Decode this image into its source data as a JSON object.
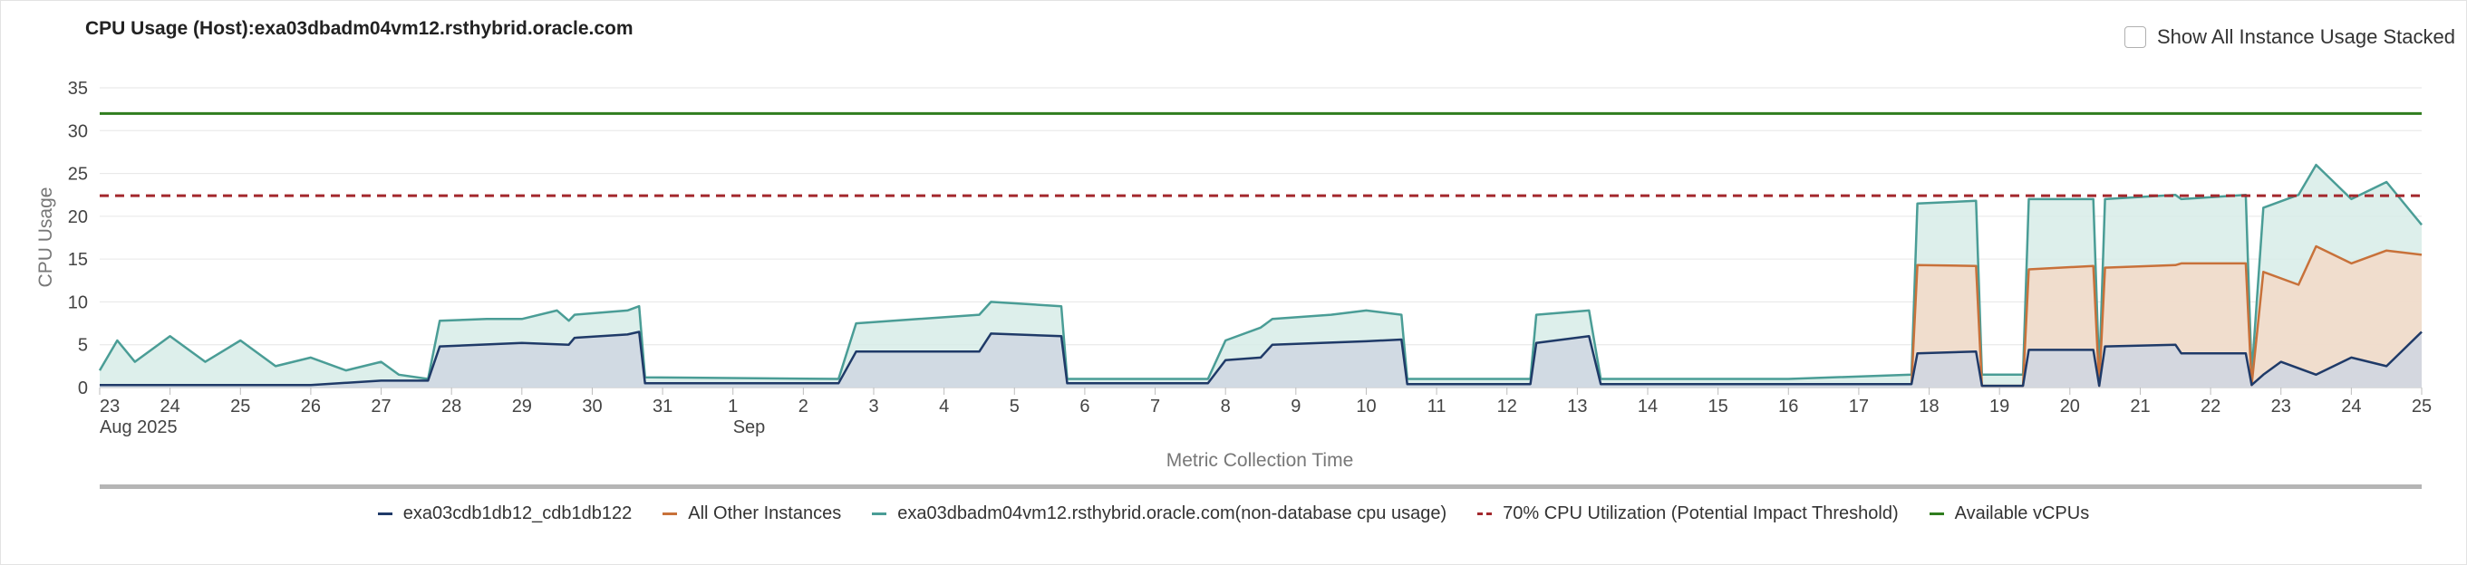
{
  "header": {
    "title": "CPU Usage (Host):exa03dbadm04vm12.rsthybrid.oracle.com",
    "stack_toggle_label": "Show All Instance Usage Stacked",
    "stack_toggle_checked": false
  },
  "chart_data": {
    "type": "area",
    "xlabel": "Metric Collection Time",
    "ylabel": "CPU Usage",
    "ylim": [
      0,
      35
    ],
    "yticks": [
      0,
      5,
      10,
      15,
      20,
      25,
      30,
      35
    ],
    "grid": true,
    "legend_position": "bottom",
    "x_range": [
      "2025-08-23",
      "2025-09-25"
    ],
    "x_ticks": [
      {
        "date": "2025-08-23",
        "label": "23",
        "sublabel": "Aug 2025"
      },
      {
        "date": "2025-08-24",
        "label": "24"
      },
      {
        "date": "2025-08-25",
        "label": "25"
      },
      {
        "date": "2025-08-26",
        "label": "26"
      },
      {
        "date": "2025-08-27",
        "label": "27"
      },
      {
        "date": "2025-08-28",
        "label": "28"
      },
      {
        "date": "2025-08-29",
        "label": "29"
      },
      {
        "date": "2025-08-30",
        "label": "30"
      },
      {
        "date": "2025-08-31",
        "label": "31"
      },
      {
        "date": "2025-09-01",
        "label": "1",
        "sublabel": "Sep"
      },
      {
        "date": "2025-09-02",
        "label": "2"
      },
      {
        "date": "2025-09-03",
        "label": "3"
      },
      {
        "date": "2025-09-04",
        "label": "4"
      },
      {
        "date": "2025-09-05",
        "label": "5"
      },
      {
        "date": "2025-09-06",
        "label": "6"
      },
      {
        "date": "2025-09-07",
        "label": "7"
      },
      {
        "date": "2025-09-08",
        "label": "8"
      },
      {
        "date": "2025-09-09",
        "label": "9"
      },
      {
        "date": "2025-09-10",
        "label": "10"
      },
      {
        "date": "2025-09-11",
        "label": "11"
      },
      {
        "date": "2025-09-12",
        "label": "12"
      },
      {
        "date": "2025-09-13",
        "label": "13"
      },
      {
        "date": "2025-09-14",
        "label": "14"
      },
      {
        "date": "2025-09-15",
        "label": "15"
      },
      {
        "date": "2025-09-16",
        "label": "16"
      },
      {
        "date": "2025-09-17",
        "label": "17"
      },
      {
        "date": "2025-09-18",
        "label": "18"
      },
      {
        "date": "2025-09-19",
        "label": "19"
      },
      {
        "date": "2025-09-20",
        "label": "20"
      },
      {
        "date": "2025-09-21",
        "label": "21"
      },
      {
        "date": "2025-09-22",
        "label": "22"
      },
      {
        "date": "2025-09-23",
        "label": "23"
      },
      {
        "date": "2025-09-24",
        "label": "24"
      },
      {
        "date": "2025-09-25",
        "label": "25"
      }
    ],
    "series": [
      {
        "name": "exa03cdb1db12_cdb1db122",
        "kind": "area",
        "color": "#1f3a68",
        "fill": "#cfd6e2",
        "points": [
          [
            "2025-08-23 00:00",
            0.3
          ],
          [
            "2025-08-26 00:00",
            0.3
          ],
          [
            "2025-08-27 00:00",
            0.8
          ],
          [
            "2025-08-27 16:00",
            0.8
          ],
          [
            "2025-08-27 20:00",
            4.8
          ],
          [
            "2025-08-29 00:00",
            5.2
          ],
          [
            "2025-08-29 16:00",
            5.0
          ],
          [
            "2025-08-29 18:00",
            5.8
          ],
          [
            "2025-08-30 12:00",
            6.2
          ],
          [
            "2025-08-30 16:00",
            6.5
          ],
          [
            "2025-08-30 18:00",
            0.5
          ],
          [
            "2025-09-02 12:00",
            0.5
          ],
          [
            "2025-09-02 18:00",
            4.2
          ],
          [
            "2025-09-04 12:00",
            4.2
          ],
          [
            "2025-09-04 16:00",
            6.3
          ],
          [
            "2025-09-05 16:00",
            6.0
          ],
          [
            "2025-09-05 18:00",
            0.5
          ],
          [
            "2025-09-07 18:00",
            0.5
          ],
          [
            "2025-09-08 00:00",
            3.2
          ],
          [
            "2025-09-08 12:00",
            3.5
          ],
          [
            "2025-09-08 16:00",
            5.0
          ],
          [
            "2025-09-10 00:00",
            5.4
          ],
          [
            "2025-09-10 12:00",
            5.6
          ],
          [
            "2025-09-10 14:00",
            0.4
          ],
          [
            "2025-09-12 08:00",
            0.4
          ],
          [
            "2025-09-12 10:00",
            5.2
          ],
          [
            "2025-09-13 04:00",
            6.0
          ],
          [
            "2025-09-13 08:00",
            0.4
          ],
          [
            "2025-09-17 18:00",
            0.4
          ],
          [
            "2025-09-17 20:00",
            4.0
          ],
          [
            "2025-09-18 16:00",
            4.2
          ],
          [
            "2025-09-18 18:00",
            0.2
          ],
          [
            "2025-09-19 08:00",
            0.2
          ],
          [
            "2025-09-19 10:00",
            4.4
          ],
          [
            "2025-09-20 08:00",
            4.4
          ],
          [
            "2025-09-20 10:00",
            0.2
          ],
          [
            "2025-09-20 12:00",
            4.8
          ],
          [
            "2025-09-21 12:00",
            5.0
          ],
          [
            "2025-09-21 14:00",
            4.0
          ],
          [
            "2025-09-22 12:00",
            4.0
          ],
          [
            "2025-09-22 14:00",
            0.3
          ],
          [
            "2025-09-22 18:00",
            1.5
          ],
          [
            "2025-09-23 00:00",
            3.0
          ],
          [
            "2025-09-23 12:00",
            1.5
          ],
          [
            "2025-09-24 00:00",
            3.5
          ],
          [
            "2025-09-24 12:00",
            2.5
          ],
          [
            "2025-09-25 00:00",
            6.5
          ]
        ]
      },
      {
        "name": "All Other Instances",
        "kind": "area",
        "color": "#c8713a",
        "fill": "#f3d9c8",
        "points": [
          [
            "2025-09-17 18:00",
            0.4
          ],
          [
            "2025-09-17 20:00",
            14.3
          ],
          [
            "2025-09-18 16:00",
            14.2
          ],
          [
            "2025-09-18 18:00",
            0.2
          ],
          [
            "2025-09-19 08:00",
            0.2
          ],
          [
            "2025-09-19 10:00",
            13.8
          ],
          [
            "2025-09-20 08:00",
            14.2
          ],
          [
            "2025-09-20 10:00",
            0.2
          ],
          [
            "2025-09-20 12:00",
            14.0
          ],
          [
            "2025-09-21 12:00",
            14.3
          ],
          [
            "2025-09-21 14:00",
            14.5
          ],
          [
            "2025-09-22 12:00",
            14.5
          ],
          [
            "2025-09-22 14:00",
            0.3
          ],
          [
            "2025-09-22 18:00",
            13.5
          ],
          [
            "2025-09-23 06:00",
            12.0
          ],
          [
            "2025-09-23 12:00",
            16.5
          ],
          [
            "2025-09-24 00:00",
            14.5
          ],
          [
            "2025-09-24 12:00",
            16.0
          ],
          [
            "2025-09-25 00:00",
            15.5
          ]
        ]
      },
      {
        "name": "exa03dbadm04vm12.rsthybrid.oracle.com(non-database cpu usage)",
        "kind": "area",
        "color": "#4a9d96",
        "fill": "#d7ece8",
        "points": [
          [
            "2025-08-23 00:00",
            2.0
          ],
          [
            "2025-08-23 06:00",
            5.5
          ],
          [
            "2025-08-23 12:00",
            3.0
          ],
          [
            "2025-08-24 00:00",
            6.0
          ],
          [
            "2025-08-24 12:00",
            3.0
          ],
          [
            "2025-08-25 00:00",
            5.5
          ],
          [
            "2025-08-25 12:00",
            2.5
          ],
          [
            "2025-08-26 00:00",
            3.5
          ],
          [
            "2025-08-26 12:00",
            2.0
          ],
          [
            "2025-08-27 00:00",
            3.0
          ],
          [
            "2025-08-27 06:00",
            1.5
          ],
          [
            "2025-08-27 16:00",
            1.0
          ],
          [
            "2025-08-27 20:00",
            7.8
          ],
          [
            "2025-08-28 12:00",
            8.0
          ],
          [
            "2025-08-29 00:00",
            8.0
          ],
          [
            "2025-08-29 12:00",
            9.0
          ],
          [
            "2025-08-29 16:00",
            7.8
          ],
          [
            "2025-08-29 18:00",
            8.5
          ],
          [
            "2025-08-30 12:00",
            9.0
          ],
          [
            "2025-08-30 16:00",
            9.5
          ],
          [
            "2025-08-30 18:00",
            1.2
          ],
          [
            "2025-09-02 12:00",
            1.0
          ],
          [
            "2025-09-02 18:00",
            7.5
          ],
          [
            "2025-09-04 12:00",
            8.5
          ],
          [
            "2025-09-04 16:00",
            10.0
          ],
          [
            "2025-09-05 16:00",
            9.5
          ],
          [
            "2025-09-05 18:00",
            1.0
          ],
          [
            "2025-09-07 18:00",
            1.0
          ],
          [
            "2025-09-08 00:00",
            5.5
          ],
          [
            "2025-09-08 12:00",
            7.0
          ],
          [
            "2025-09-08 16:00",
            8.0
          ],
          [
            "2025-09-09 12:00",
            8.5
          ],
          [
            "2025-09-10 00:00",
            9.0
          ],
          [
            "2025-09-10 12:00",
            8.5
          ],
          [
            "2025-09-10 14:00",
            1.0
          ],
          [
            "2025-09-12 08:00",
            1.0
          ],
          [
            "2025-09-12 10:00",
            8.5
          ],
          [
            "2025-09-13 04:00",
            9.0
          ],
          [
            "2025-09-13 08:00",
            1.0
          ],
          [
            "2025-09-16 00:00",
            1.0
          ],
          [
            "2025-09-17 18:00",
            1.5
          ],
          [
            "2025-09-17 20:00",
            21.5
          ],
          [
            "2025-09-18 16:00",
            21.8
          ],
          [
            "2025-09-18 18:00",
            1.5
          ],
          [
            "2025-09-19 08:00",
            1.5
          ],
          [
            "2025-09-19 10:00",
            22.0
          ],
          [
            "2025-09-20 08:00",
            22.0
          ],
          [
            "2025-09-20 10:00",
            1.5
          ],
          [
            "2025-09-20 12:00",
            22.0
          ],
          [
            "2025-09-21 12:00",
            22.5
          ],
          [
            "2025-09-21 14:00",
            22.0
          ],
          [
            "2025-09-22 12:00",
            22.5
          ],
          [
            "2025-09-22 14:00",
            1.5
          ],
          [
            "2025-09-22 18:00",
            21.0
          ],
          [
            "2025-09-23 06:00",
            22.5
          ],
          [
            "2025-09-23 12:00",
            26.0
          ],
          [
            "2025-09-24 00:00",
            22.0
          ],
          [
            "2025-09-24 12:00",
            24.0
          ],
          [
            "2025-09-25 00:00",
            19.0
          ]
        ]
      },
      {
        "name": "70% CPU Utilization (Potential Impact Threshold)",
        "kind": "threshold",
        "color": "#a3282d",
        "value": 22.4
      },
      {
        "name": "Available vCPUs",
        "kind": "threshold",
        "color": "#2f7d1e",
        "value": 32
      }
    ]
  }
}
